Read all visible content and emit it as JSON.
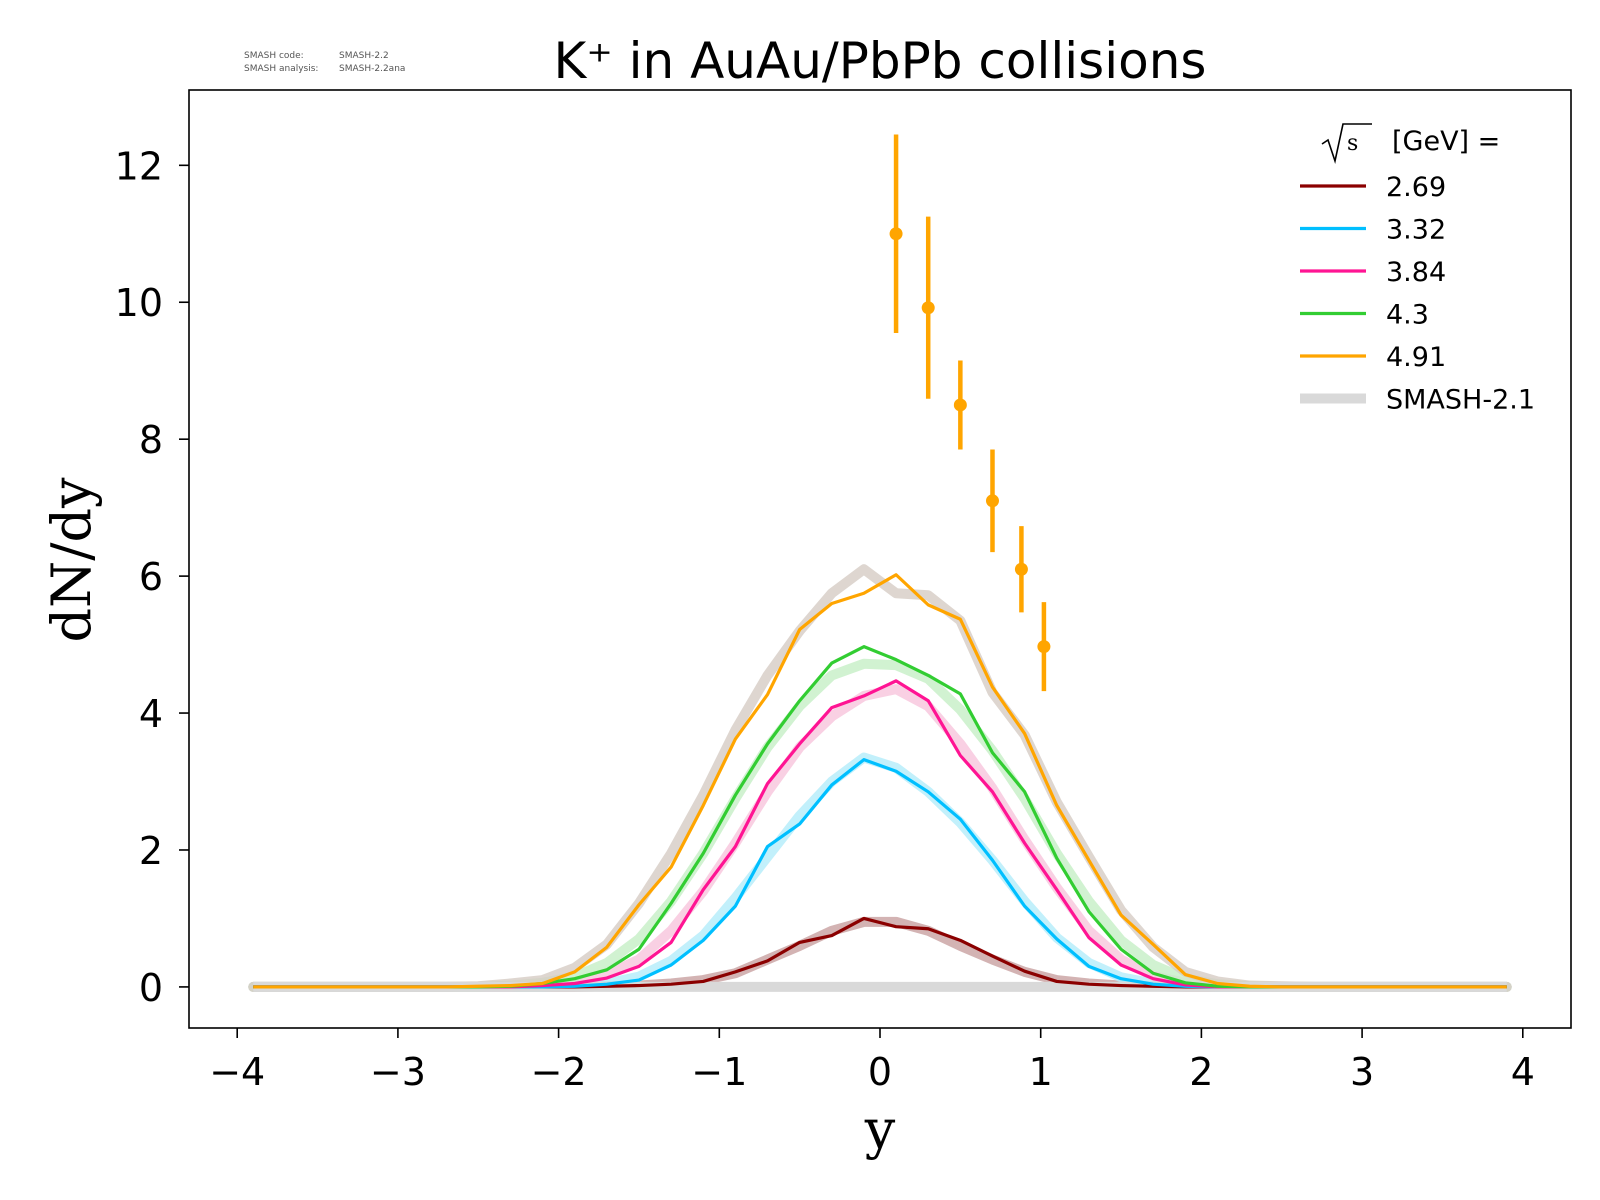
{
  "meta": {
    "code_label": "SMASH code:",
    "code_value": "SMASH-2.2",
    "analysis_label": "SMASH analysis:",
    "analysis_value": "SMASH-2.2ana"
  },
  "chart_data": {
    "type": "line",
    "title": "K⁺ in AuAu/PbPb collisions",
    "xlabel": "y",
    "ylabel": "dN/dy",
    "xlim": [
      -4.3,
      4.3
    ],
    "ylim": [
      -0.6,
      13.1
    ],
    "xticks": [
      -4,
      -3,
      -2,
      -1,
      0,
      1,
      2,
      3,
      4
    ],
    "xtick_labels": [
      "−4",
      "−3",
      "−2",
      "−1",
      "0",
      "1",
      "2",
      "3",
      "4"
    ],
    "yticks": [
      0,
      2,
      4,
      6,
      8,
      10,
      12
    ],
    "ytick_labels": [
      "0",
      "2",
      "4",
      "6",
      "8",
      "10",
      "12"
    ],
    "grid": false,
    "legend_position": "top-right",
    "legend_title": "[GeV] =",
    "legend_title_symbol": "√s",
    "reference_name": "SMASH-2.1",
    "reference_color": "#d9d9d9",
    "x": [
      -3.9,
      -3.7,
      -3.5,
      -3.3,
      -3.1,
      -2.9,
      -2.7,
      -2.5,
      -2.3,
      -2.1,
      -1.9,
      -1.7,
      -1.5,
      -1.3,
      -1.1,
      -0.9,
      -0.7,
      -0.5,
      -0.3,
      -0.1,
      0.1,
      0.3,
      0.5,
      0.7,
      0.9,
      1.1,
      1.3,
      1.5,
      1.7,
      1.9,
      2.1,
      2.3,
      2.5,
      2.7,
      2.9,
      3.1,
      3.3,
      3.5,
      3.7,
      3.9
    ],
    "series": [
      {
        "name": "2.69",
        "color": "#8b0000",
        "band_color": "#c8a0a0",
        "values": [
          0,
          0,
          0,
          0,
          0,
          0,
          0,
          0,
          0,
          0,
          0,
          0.01,
          0.02,
          0.04,
          0.08,
          0.22,
          0.38,
          0.65,
          0.75,
          1.0,
          0.88,
          0.85,
          0.68,
          0.45,
          0.23,
          0.08,
          0.04,
          0.02,
          0.01,
          0,
          0,
          0,
          0,
          0,
          0,
          0,
          0,
          0,
          0,
          0
        ],
        "reference": [
          0,
          0,
          0,
          0,
          0,
          0,
          0,
          0,
          0,
          0,
          0,
          0.01,
          0.02,
          0.05,
          0.1,
          0.2,
          0.4,
          0.6,
          0.82,
          0.95,
          0.95,
          0.82,
          0.6,
          0.4,
          0.22,
          0.1,
          0.05,
          0.02,
          0.01,
          0,
          0,
          0,
          0,
          0,
          0,
          0,
          0,
          0,
          0,
          0
        ]
      },
      {
        "name": "3.32",
        "color": "#00bfff",
        "band_color": "#b3ecfa",
        "values": [
          0,
          0,
          0,
          0,
          0,
          0,
          0,
          0,
          0,
          0,
          0.01,
          0.04,
          0.1,
          0.32,
          0.68,
          1.18,
          2.05,
          2.38,
          2.95,
          3.32,
          3.15,
          2.85,
          2.45,
          1.85,
          1.18,
          0.7,
          0.3,
          0.12,
          0.04,
          0.01,
          0,
          0,
          0,
          0,
          0,
          0,
          0,
          0,
          0,
          0
        ],
        "reference": [
          0,
          0,
          0,
          0,
          0,
          0,
          0,
          0,
          0,
          0,
          0.02,
          0.05,
          0.15,
          0.38,
          0.75,
          1.3,
          1.9,
          2.5,
          3.0,
          3.35,
          3.2,
          2.85,
          2.4,
          1.85,
          1.25,
          0.72,
          0.35,
          0.14,
          0.05,
          0.02,
          0,
          0,
          0,
          0,
          0,
          0,
          0,
          0,
          0,
          0
        ]
      },
      {
        "name": "3.84",
        "color": "#ff1493",
        "band_color": "#f8c4dc",
        "values": [
          0,
          0,
          0,
          0,
          0,
          0,
          0,
          0,
          0,
          0.02,
          0.05,
          0.13,
          0.3,
          0.65,
          1.42,
          2.05,
          2.97,
          3.55,
          4.08,
          4.25,
          4.47,
          4.18,
          3.38,
          2.85,
          2.1,
          1.42,
          0.72,
          0.32,
          0.12,
          0.03,
          0,
          0,
          0,
          0,
          0,
          0,
          0,
          0,
          0,
          0
        ],
        "reference": [
          0,
          0,
          0,
          0,
          0,
          0,
          0,
          0,
          0,
          0.03,
          0.07,
          0.18,
          0.4,
          0.82,
          1.4,
          2.1,
          2.85,
          3.5,
          3.95,
          4.25,
          4.35,
          4.1,
          3.55,
          2.9,
          2.15,
          1.45,
          0.82,
          0.4,
          0.16,
          0.06,
          0.02,
          0,
          0,
          0,
          0,
          0,
          0,
          0,
          0,
          0
        ]
      },
      {
        "name": "4.3",
        "color": "#32cd32",
        "band_color": "#c6efc6",
        "values": [
          0,
          0,
          0,
          0,
          0,
          0,
          0,
          0,
          0.01,
          0.05,
          0.12,
          0.25,
          0.55,
          1.22,
          1.95,
          2.8,
          3.55,
          4.18,
          4.73,
          4.97,
          4.78,
          4.55,
          4.28,
          3.42,
          2.85,
          1.88,
          1.1,
          0.55,
          0.2,
          0.06,
          0.01,
          0,
          0,
          0,
          0,
          0,
          0,
          0,
          0,
          0
        ],
        "reference": [
          0,
          0,
          0,
          0,
          0,
          0,
          0,
          0,
          0.02,
          0.06,
          0.15,
          0.35,
          0.7,
          1.25,
          1.95,
          2.75,
          3.5,
          4.1,
          4.55,
          4.72,
          4.7,
          4.5,
          4.05,
          3.45,
          2.75,
          1.95,
          1.25,
          0.68,
          0.32,
          0.12,
          0.04,
          0.01,
          0,
          0,
          0,
          0,
          0,
          0,
          0,
          0
        ]
      },
      {
        "name": "4.91",
        "color": "#ffa500",
        "band_color": "#d6ccc4",
        "values": [
          0,
          0,
          0,
          0,
          0,
          0,
          0,
          0.01,
          0.02,
          0.05,
          0.22,
          0.58,
          1.2,
          1.75,
          2.65,
          3.62,
          4.27,
          5.22,
          5.6,
          5.75,
          6.02,
          5.58,
          5.37,
          4.38,
          3.7,
          2.65,
          1.85,
          1.05,
          0.62,
          0.18,
          0.05,
          0.01,
          0,
          0,
          0,
          0,
          0,
          0,
          0,
          0
        ],
        "reference": [
          0,
          0,
          0,
          0,
          0,
          0,
          0,
          0.01,
          0.05,
          0.1,
          0.28,
          0.62,
          1.22,
          1.95,
          2.8,
          3.75,
          4.55,
          5.2,
          5.75,
          6.1,
          5.75,
          5.72,
          5.35,
          4.3,
          3.68,
          2.7,
          1.9,
          1.12,
          0.58,
          0.22,
          0.08,
          0.02,
          0.01,
          0,
          0,
          0,
          0,
          0,
          0,
          0
        ]
      }
    ],
    "measurements": {
      "series": "4.91",
      "color": "#ffa500",
      "points": [
        {
          "x": 0.1,
          "y": 11.0,
          "yerr": 1.45
        },
        {
          "x": 0.3,
          "y": 9.92,
          "yerr": 1.33
        },
        {
          "x": 0.5,
          "y": 8.5,
          "yerr": 0.65
        },
        {
          "x": 0.7,
          "y": 7.1,
          "yerr": 0.75
        },
        {
          "x": 0.88,
          "y": 6.1,
          "yerr": 0.63
        },
        {
          "x": 1.02,
          "y": 4.97,
          "yerr": 0.65
        }
      ]
    }
  }
}
